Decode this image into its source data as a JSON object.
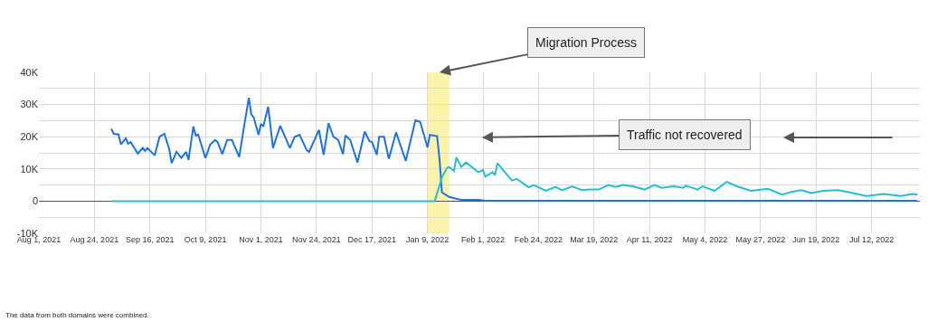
{
  "chart_data": {
    "type": "line",
    "xlim": [
      "2021-08-01",
      "2022-08-01"
    ],
    "xticks": [
      {
        "value": "2021-08-01",
        "label": "Aug 1, 2021"
      },
      {
        "value": "2021-08-24",
        "label": "Aug 24, 2021"
      },
      {
        "value": "2021-09-16",
        "label": "Sep 16, 2021"
      },
      {
        "value": "2021-10-09",
        "label": "Oct 9, 2021"
      },
      {
        "value": "2021-11-01",
        "label": "Nov 1, 2021"
      },
      {
        "value": "2021-11-24",
        "label": "Nov 24, 2021"
      },
      {
        "value": "2021-12-17",
        "label": "Dec 17, 2021"
      },
      {
        "value": "2022-01-09",
        "label": "Jan 9, 2022"
      },
      {
        "value": "2022-02-01",
        "label": "Feb 1, 2022"
      },
      {
        "value": "2022-02-24",
        "label": "Feb 24, 2022"
      },
      {
        "value": "2022-03-19",
        "label": "Mar 19, 2022"
      },
      {
        "value": "2022-04-11",
        "label": "Apr 11, 2022"
      },
      {
        "value": "2022-05-04",
        "label": "May 4, 2022"
      },
      {
        "value": "2022-05-27",
        "label": "May 27, 2022"
      },
      {
        "value": "2022-06-19",
        "label": "Jun 19, 2022"
      },
      {
        "value": "2022-07-12",
        "label": "Jul 12, 2022"
      }
    ],
    "ylim": [
      -10000,
      40000
    ],
    "yticks": [
      {
        "value": -10000,
        "label": "-10K"
      },
      {
        "value": -5000,
        "label": null
      },
      {
        "value": 0,
        "label": "0"
      },
      {
        "value": 5000,
        "label": null
      },
      {
        "value": 10000,
        "label": "10K"
      },
      {
        "value": 15000,
        "label": null
      },
      {
        "value": 20000,
        "label": "20K"
      },
      {
        "value": 25000,
        "label": null
      },
      {
        "value": 30000,
        "label": "30K"
      },
      {
        "value": 35000,
        "label": null
      },
      {
        "value": 40000,
        "label": "40K"
      }
    ],
    "grid": true,
    "marker": "none",
    "line_style": "solid",
    "bands": [
      {
        "axis": "x",
        "from": "2022-01-09",
        "to": "2022-01-18",
        "color": "#f7f08c"
      }
    ],
    "annotations": [
      {
        "text": "Migration Process",
        "x": "2022-01-14",
        "y": 40000
      },
      "Traffic not recovered",
      "The data from both domains were combined."
    ],
    "series": [
      {
        "color": "#1a73e8",
        "x": [
          "2021-08-31",
          "2021-09-01",
          "2021-09-03",
          "2021-09-04",
          "2021-09-06",
          "2021-09-07",
          "2021-09-08",
          "2021-09-11",
          "2021-09-13",
          "2021-09-14",
          "2021-09-15",
          "2021-09-18",
          "2021-09-20",
          "2021-09-22",
          "2021-09-24",
          "2021-09-25",
          "2021-09-27",
          "2021-09-29",
          "2021-10-01",
          "2021-10-02",
          "2021-10-04",
          "2021-10-05",
          "2021-10-06",
          "2021-10-09",
          "2021-10-11",
          "2021-10-13",
          "2021-10-14",
          "2021-10-16",
          "2021-10-18",
          "2021-10-20",
          "2021-10-23",
          "2021-10-25",
          "2021-10-27",
          "2021-10-28",
          "2021-10-29",
          "2021-10-31",
          "2021-11-01",
          "2021-11-02",
          "2021-11-04",
          "2021-11-06",
          "2021-11-09",
          "2021-11-13",
          "2021-11-15",
          "2021-11-17",
          "2021-11-20",
          "2021-11-21",
          "2021-11-25",
          "2021-11-27",
          "2021-11-29",
          "2021-12-01",
          "2021-12-03",
          "2021-12-05",
          "2021-12-06",
          "2021-12-08",
          "2021-12-11",
          "2021-12-14",
          "2021-12-16",
          "2021-12-17",
          "2021-12-19",
          "2021-12-20",
          "2021-12-22",
          "2021-12-24",
          "2021-12-27",
          "2021-12-31",
          "2022-01-04",
          "2022-01-06",
          "2022-01-09",
          "2022-01-10",
          "2022-01-13",
          "2022-01-14",
          "2022-01-15",
          "2022-01-18",
          "2022-01-23",
          "2022-01-30",
          "2022-02-02",
          "2022-07-31"
        ],
        "values": [
          22500,
          20900,
          20700,
          17600,
          19500,
          17800,
          18400,
          14800,
          16500,
          15600,
          16500,
          14200,
          20000,
          20900,
          16200,
          11800,
          15300,
          13400,
          15300,
          12800,
          23200,
          20400,
          20700,
          13400,
          17600,
          19000,
          18400,
          14600,
          19000,
          19000,
          13700,
          23200,
          32100,
          27000,
          26000,
          20600,
          24000,
          23200,
          29300,
          16500,
          23400,
          16500,
          20000,
          20600,
          15800,
          15300,
          22100,
          14400,
          24200,
          20000,
          19000,
          14600,
          20400,
          19000,
          12000,
          21600,
          18600,
          18400,
          14400,
          20000,
          20000,
          13200,
          21400,
          12500,
          25100,
          24600,
          16700,
          20600,
          20200,
          13000,
          2700,
          1300,
          400,
          400,
          100,
          100
        ]
      },
      {
        "color": "#26bfd0",
        "x": [
          "2021-08-31",
          "2022-01-12",
          "2022-01-15",
          "2022-01-17",
          "2022-01-18",
          "2022-01-20",
          "2022-01-21",
          "2022-01-23",
          "2022-01-25",
          "2022-01-30",
          "2022-02-01",
          "2022-02-02",
          "2022-02-05",
          "2022-02-06",
          "2022-02-07",
          "2022-02-09",
          "2022-02-13",
          "2022-02-15",
          "2022-02-20",
          "2022-02-22",
          "2022-02-27",
          "2022-03-03",
          "2022-03-06",
          "2022-03-10",
          "2022-03-14",
          "2022-03-17",
          "2022-03-21",
          "2022-03-25",
          "2022-03-28",
          "2022-03-31",
          "2022-04-04",
          "2022-04-09",
          "2022-04-13",
          "2022-04-16",
          "2022-04-21",
          "2022-04-25",
          "2022-04-26",
          "2022-05-01",
          "2022-05-03",
          "2022-05-08",
          "2022-05-13",
          "2022-05-18",
          "2022-05-23",
          "2022-05-30",
          "2022-06-05",
          "2022-06-09",
          "2022-06-13",
          "2022-06-17",
          "2022-06-22",
          "2022-06-28",
          "2022-07-03",
          "2022-07-10",
          "2022-07-17",
          "2022-07-24",
          "2022-07-29",
          "2022-07-31"
        ],
        "values": [
          0,
          0,
          7400,
          10200,
          10600,
          9400,
          13600,
          10600,
          12000,
          9000,
          9700,
          7600,
          9000,
          8000,
          11800,
          10000,
          6400,
          6900,
          4300,
          5000,
          3200,
          4400,
          3400,
          4600,
          3400,
          3600,
          3600,
          5000,
          4400,
          5000,
          4600,
          3600,
          5000,
          4100,
          4600,
          4100,
          4800,
          3600,
          4600,
          3200,
          6000,
          4400,
          3200,
          3800,
          2000,
          2900,
          3400,
          2500,
          3200,
          3400,
          2700,
          1600,
          2200,
          1600,
          2200,
          2000
        ]
      }
    ]
  }
}
